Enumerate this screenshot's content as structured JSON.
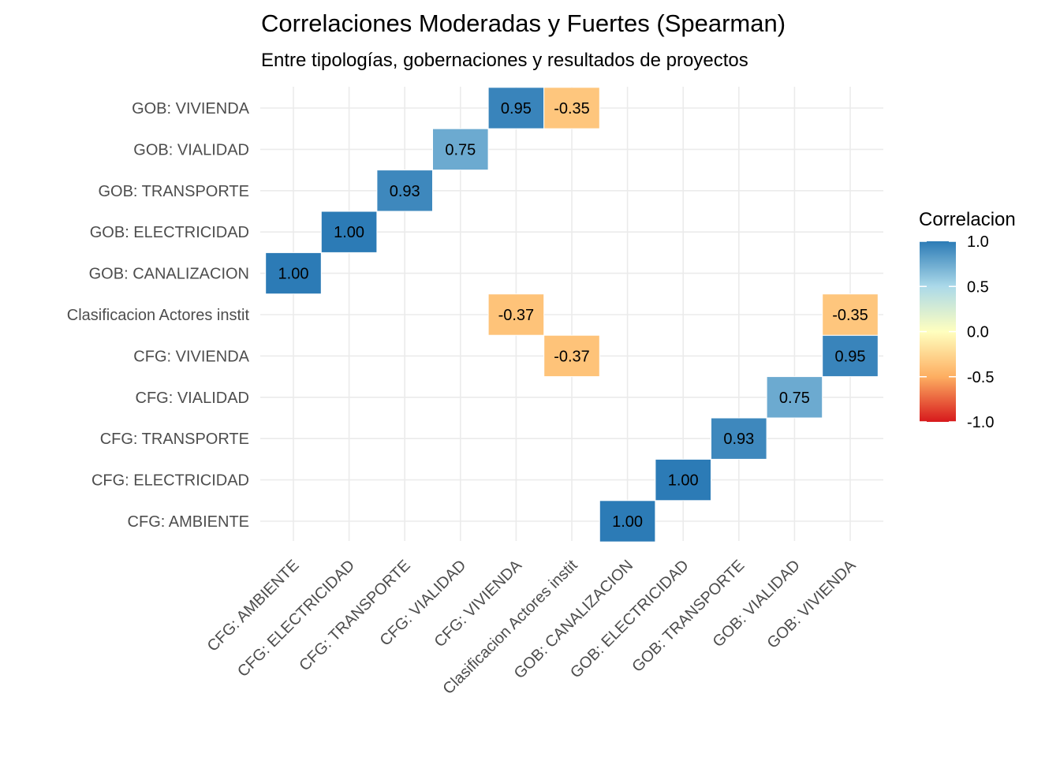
{
  "chart_data": {
    "type": "heatmap",
    "title": "Correlaciones Moderadas y Fuertes (Spearman)",
    "subtitle": "Entre tipologías, gobernaciones y resultados de proyectos",
    "x_categories": [
      "CFG: AMBIENTE",
      "CFG: ELECTRICIDAD",
      "CFG: TRANSPORTE",
      "CFG: VIALIDAD",
      "CFG: VIVIENDA",
      "Clasificacion Actores instit",
      "GOB: CANALIZACION",
      "GOB: ELECTRICIDAD",
      "GOB: TRANSPORTE",
      "GOB: VIALIDAD",
      "GOB: VIVIENDA"
    ],
    "y_categories": [
      "CFG: AMBIENTE",
      "CFG: ELECTRICIDAD",
      "CFG: TRANSPORTE",
      "CFG: VIALIDAD",
      "CFG: VIVIENDA",
      "Clasificacion Actores instit",
      "GOB: CANALIZACION",
      "GOB: ELECTRICIDAD",
      "GOB: TRANSPORTE",
      "GOB: VIALIDAD",
      "GOB: VIVIENDA"
    ],
    "cells": [
      {
        "x": "GOB: CANALIZACION",
        "y": "CFG: AMBIENTE",
        "value": 1.0,
        "label": "1.00"
      },
      {
        "x": "GOB: ELECTRICIDAD",
        "y": "CFG: ELECTRICIDAD",
        "value": 1.0,
        "label": "1.00"
      },
      {
        "x": "GOB: TRANSPORTE",
        "y": "CFG: TRANSPORTE",
        "value": 0.93,
        "label": "0.93"
      },
      {
        "x": "GOB: VIALIDAD",
        "y": "CFG: VIALIDAD",
        "value": 0.75,
        "label": "0.75"
      },
      {
        "x": "Clasificacion Actores instit",
        "y": "CFG: VIVIENDA",
        "value": -0.37,
        "label": "-0.37"
      },
      {
        "x": "GOB: VIVIENDA",
        "y": "CFG: VIVIENDA",
        "value": 0.95,
        "label": "0.95"
      },
      {
        "x": "CFG: VIVIENDA",
        "y": "Clasificacion Actores instit",
        "value": -0.37,
        "label": "-0.37"
      },
      {
        "x": "GOB: VIVIENDA",
        "y": "Clasificacion Actores instit",
        "value": -0.35,
        "label": "-0.35"
      },
      {
        "x": "CFG: AMBIENTE",
        "y": "GOB: CANALIZACION",
        "value": 1.0,
        "label": "1.00"
      },
      {
        "x": "CFG: ELECTRICIDAD",
        "y": "GOB: ELECTRICIDAD",
        "value": 1.0,
        "label": "1.00"
      },
      {
        "x": "CFG: TRANSPORTE",
        "y": "GOB: TRANSPORTE",
        "value": 0.93,
        "label": "0.93"
      },
      {
        "x": "CFG: VIALIDAD",
        "y": "GOB: VIALIDAD",
        "value": 0.75,
        "label": "0.75"
      },
      {
        "x": "CFG: VIVIENDA",
        "y": "GOB: VIVIENDA",
        "value": 0.95,
        "label": "0.95"
      },
      {
        "x": "Clasificacion Actores instit",
        "y": "GOB: VIVIENDA",
        "value": -0.35,
        "label": "-0.35"
      }
    ],
    "legend": {
      "title": "Correlacion",
      "placement": "right",
      "range": [
        -1,
        1
      ],
      "ticks": [
        {
          "value": 1.0,
          "label": "1.0"
        },
        {
          "value": 0.5,
          "label": "0.5"
        },
        {
          "value": 0.0,
          "label": "0.0"
        },
        {
          "value": -0.5,
          "label": "-0.5"
        },
        {
          "value": -1.0,
          "label": "-1.0"
        }
      ],
      "color_stops": [
        {
          "value": -1.0,
          "color": "#D7191C"
        },
        {
          "value": -0.5,
          "color": "#FDAE61"
        },
        {
          "value": 0.0,
          "color": "#FFFFBF"
        },
        {
          "value": 0.5,
          "color": "#ABD9E9"
        },
        {
          "value": 1.0,
          "color": "#2C7BB6"
        }
      ]
    },
    "grid": true
  }
}
